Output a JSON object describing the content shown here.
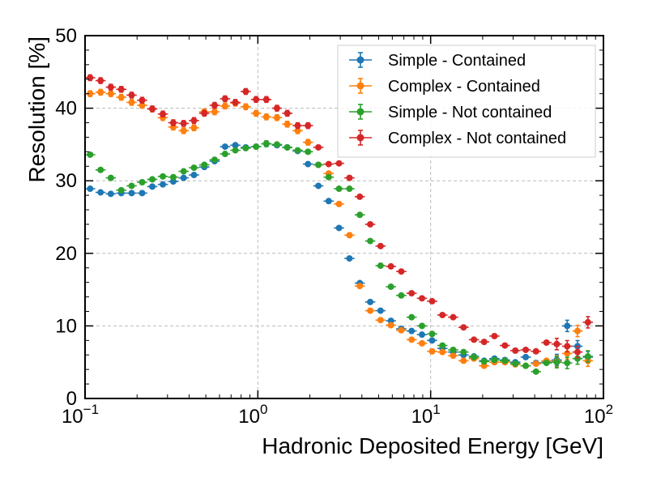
{
  "chart_data": {
    "type": "scatter",
    "xlabel": "Hadronic Deposited Energy [GeV]",
    "ylabel": "Resolution [%]",
    "xscale": "log",
    "xlim": [
      0.1,
      100
    ],
    "ylim": [
      0,
      50
    ],
    "x_ticks": [
      {
        "value": 0.1,
        "base": "10",
        "exp": "−1"
      },
      {
        "value": 1,
        "base": "10",
        "exp": "0"
      },
      {
        "value": 10,
        "base": "10",
        "exp": "1"
      },
      {
        "value": 100,
        "base": "10",
        "exp": "2"
      }
    ],
    "y_ticks": [
      {
        "value": 0,
        "label": "0"
      },
      {
        "value": 10,
        "label": "10"
      },
      {
        "value": 20,
        "label": "20"
      },
      {
        "value": 30,
        "label": "30"
      },
      {
        "value": 40,
        "label": "40"
      },
      {
        "value": 50,
        "label": "50"
      }
    ],
    "grid": true,
    "legend_position": "top-right",
    "series": [
      {
        "name": "Simple - Contained",
        "color": "#1f77b4",
        "points": [
          [
            0.107,
            28.9
          ],
          [
            0.123,
            28.4
          ],
          [
            0.141,
            28.2
          ],
          [
            0.162,
            28.3
          ],
          [
            0.186,
            28.3
          ],
          [
            0.214,
            28.3
          ],
          [
            0.245,
            29.2
          ],
          [
            0.282,
            29.5
          ],
          [
            0.324,
            29.9
          ],
          [
            0.372,
            30.4
          ],
          [
            0.427,
            30.8
          ],
          [
            0.49,
            31.9
          ],
          [
            0.562,
            32.7
          ],
          [
            0.646,
            34.7
          ],
          [
            0.741,
            34.9
          ],
          [
            0.851,
            34.6
          ],
          [
            0.977,
            34.7
          ],
          [
            1.12,
            35.1
          ],
          [
            1.29,
            34.9
          ],
          [
            1.48,
            34.6
          ],
          [
            1.7,
            34.1
          ],
          [
            1.95,
            32.3
          ],
          [
            2.24,
            29.3
          ],
          [
            2.57,
            27.2
          ],
          [
            2.95,
            23.5
          ],
          [
            3.39,
            19.3
          ],
          [
            3.89,
            15.9
          ],
          [
            4.47,
            13.3
          ],
          [
            5.13,
            12.1
          ],
          [
            5.89,
            10.7
          ],
          [
            6.76,
            9.6
          ],
          [
            7.76,
            9.3
          ],
          [
            8.91,
            8.8
          ],
          [
            10.2,
            8.0
          ],
          [
            11.7,
            6.9
          ],
          [
            13.5,
            6.4
          ],
          [
            15.5,
            6.0
          ],
          [
            17.8,
            5.8
          ],
          [
            20.4,
            5.2
          ],
          [
            23.4,
            5.5
          ],
          [
            26.9,
            5.3
          ],
          [
            30.9,
            5.0
          ],
          [
            35.5,
            5.7
          ],
          [
            40.7,
            4.9
          ],
          [
            46.8,
            5.0
          ],
          [
            53.7,
            5.3
          ],
          [
            61.7,
            10.0
          ],
          [
            70.8,
            7.2
          ],
          [
            81.3,
            5.7
          ]
        ]
      },
      {
        "name": "Complex - Contained",
        "color": "#ff7f0e",
        "points": [
          [
            0.107,
            42.0
          ],
          [
            0.123,
            42.2
          ],
          [
            0.141,
            42.0
          ],
          [
            0.162,
            41.5
          ],
          [
            0.186,
            40.8
          ],
          [
            0.214,
            40.4
          ],
          [
            0.245,
            39.9
          ],
          [
            0.282,
            38.7
          ],
          [
            0.324,
            37.4
          ],
          [
            0.372,
            36.9
          ],
          [
            0.427,
            37.3
          ],
          [
            0.49,
            39.5
          ],
          [
            0.562,
            39.5
          ],
          [
            0.646,
            40.3
          ],
          [
            0.741,
            40.7
          ],
          [
            0.851,
            40.2
          ],
          [
            0.977,
            39.3
          ],
          [
            1.12,
            38.8
          ],
          [
            1.29,
            38.7
          ],
          [
            1.48,
            37.8
          ],
          [
            1.7,
            36.9
          ],
          [
            1.95,
            35.3
          ],
          [
            2.24,
            32.2
          ],
          [
            2.57,
            31.0
          ],
          [
            2.95,
            26.8
          ],
          [
            3.39,
            22.5
          ],
          [
            3.89,
            15.5
          ],
          [
            4.47,
            12.1
          ],
          [
            5.13,
            10.8
          ],
          [
            5.89,
            10.1
          ],
          [
            6.76,
            9.4
          ],
          [
            7.76,
            8.1
          ],
          [
            8.91,
            7.6
          ],
          [
            10.2,
            6.5
          ],
          [
            11.7,
            6.4
          ],
          [
            13.5,
            5.9
          ],
          [
            15.5,
            5.2
          ],
          [
            17.8,
            5.5
          ],
          [
            20.4,
            4.5
          ],
          [
            23.4,
            5.0
          ],
          [
            26.9,
            5.0
          ],
          [
            30.9,
            4.7
          ],
          [
            35.5,
            4.5
          ],
          [
            40.7,
            4.8
          ],
          [
            46.8,
            5.2
          ],
          [
            53.7,
            5.1
          ],
          [
            61.7,
            6.2
          ],
          [
            70.8,
            9.3
          ],
          [
            81.3,
            5.2
          ]
        ]
      },
      {
        "name": "Simple - Not contained",
        "color": "#2ca02c",
        "points": [
          [
            0.107,
            33.6
          ],
          [
            0.123,
            31.5
          ],
          [
            0.141,
            30.4
          ],
          [
            0.162,
            28.7
          ],
          [
            0.186,
            29.3
          ],
          [
            0.214,
            29.8
          ],
          [
            0.245,
            30.2
          ],
          [
            0.282,
            30.6
          ],
          [
            0.324,
            30.5
          ],
          [
            0.372,
            31.3
          ],
          [
            0.427,
            31.8
          ],
          [
            0.49,
            32.2
          ],
          [
            0.562,
            32.9
          ],
          [
            0.646,
            33.7
          ],
          [
            0.741,
            34.2
          ],
          [
            0.851,
            34.5
          ],
          [
            0.977,
            34.7
          ],
          [
            1.12,
            35.1
          ],
          [
            1.29,
            35.0
          ],
          [
            1.48,
            34.6
          ],
          [
            1.7,
            34.2
          ],
          [
            1.95,
            34.0
          ],
          [
            2.24,
            32.2
          ],
          [
            2.57,
            30.5
          ],
          [
            2.95,
            28.9
          ],
          [
            3.39,
            28.9
          ],
          [
            3.89,
            25.3
          ],
          [
            4.47,
            21.7
          ],
          [
            5.13,
            18.3
          ],
          [
            5.89,
            15.4
          ],
          [
            6.76,
            14.2
          ],
          [
            7.76,
            11.2
          ],
          [
            8.91,
            10.0
          ],
          [
            10.2,
            8.9
          ],
          [
            11.7,
            7.3
          ],
          [
            13.5,
            6.7
          ],
          [
            15.5,
            6.4
          ],
          [
            17.8,
            5.7
          ],
          [
            20.4,
            5.1
          ],
          [
            23.4,
            5.3
          ],
          [
            26.9,
            5.2
          ],
          [
            30.9,
            4.8
          ],
          [
            35.5,
            4.5
          ],
          [
            40.7,
            3.7
          ],
          [
            46.8,
            4.9
          ],
          [
            53.7,
            5.0
          ],
          [
            61.7,
            4.9
          ],
          [
            70.8,
            5.5
          ],
          [
            81.3,
            5.8
          ]
        ]
      },
      {
        "name": "Complex - Not contained",
        "color": "#d62728",
        "points": [
          [
            0.107,
            44.2
          ],
          [
            0.123,
            43.8
          ],
          [
            0.141,
            42.9
          ],
          [
            0.162,
            42.6
          ],
          [
            0.186,
            41.8
          ],
          [
            0.214,
            41.1
          ],
          [
            0.245,
            39.9
          ],
          [
            0.282,
            39.2
          ],
          [
            0.324,
            38.0
          ],
          [
            0.372,
            37.9
          ],
          [
            0.427,
            38.3
          ],
          [
            0.49,
            39.3
          ],
          [
            0.562,
            40.4
          ],
          [
            0.646,
            41.3
          ],
          [
            0.741,
            40.8
          ],
          [
            0.851,
            42.3
          ],
          [
            0.977,
            41.2
          ],
          [
            1.12,
            41.2
          ],
          [
            1.29,
            40.0
          ],
          [
            1.48,
            39.3
          ],
          [
            1.7,
            37.6
          ],
          [
            1.95,
            37.6
          ],
          [
            2.24,
            34.6
          ],
          [
            2.57,
            32.3
          ],
          [
            2.95,
            32.4
          ],
          [
            3.39,
            30.4
          ],
          [
            3.89,
            27.8
          ],
          [
            4.47,
            24.0
          ],
          [
            5.13,
            21.0
          ],
          [
            5.89,
            18.2
          ],
          [
            6.76,
            17.5
          ],
          [
            7.76,
            14.5
          ],
          [
            8.91,
            13.8
          ],
          [
            10.2,
            13.4
          ],
          [
            11.7,
            11.5
          ],
          [
            13.5,
            11.2
          ],
          [
            15.5,
            9.8
          ],
          [
            17.8,
            8.1
          ],
          [
            20.4,
            7.8
          ],
          [
            23.4,
            8.6
          ],
          [
            26.9,
            7.3
          ],
          [
            30.9,
            6.6
          ],
          [
            35.5,
            6.7
          ],
          [
            40.7,
            6.5
          ],
          [
            46.8,
            7.7
          ],
          [
            53.7,
            7.5
          ],
          [
            61.7,
            7.2
          ],
          [
            70.8,
            6.4
          ],
          [
            81.3,
            10.5
          ]
        ]
      }
    ]
  }
}
